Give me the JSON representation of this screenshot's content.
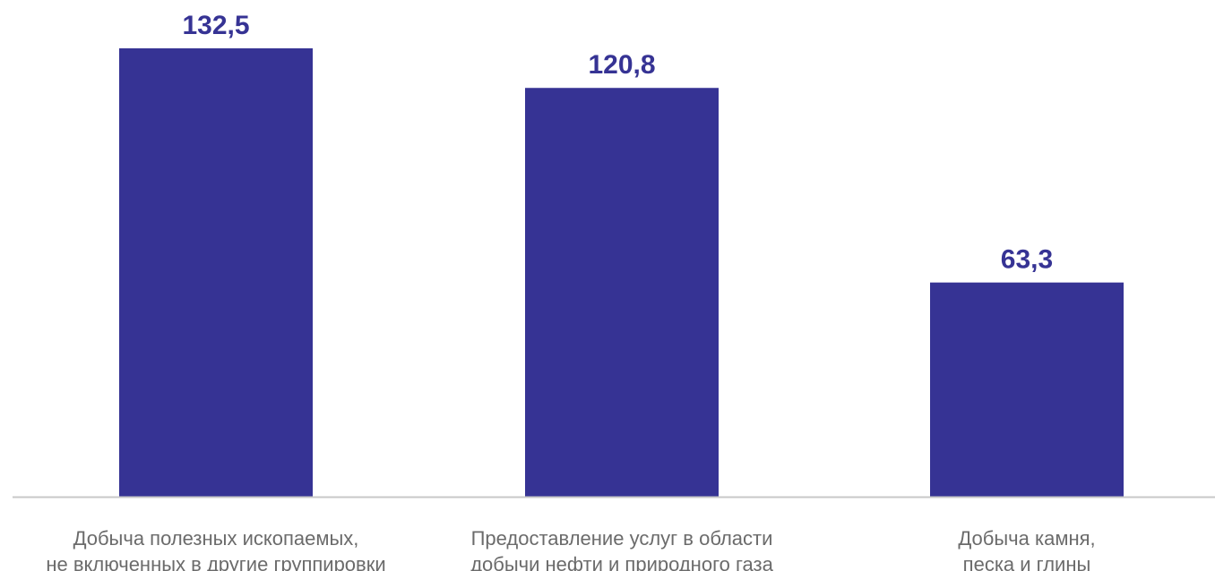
{
  "chart_data": {
    "type": "bar",
    "title": "",
    "xlabel": "",
    "ylabel": "",
    "categories": [
      [
        "Добыча полезных ископаемых,",
        "не включенных в другие группировки"
      ],
      [
        "Предоставление услуг в области",
        "добычи нефти и природного газа"
      ],
      [
        "Добыча камня,",
        "песка и глины"
      ]
    ],
    "values": [
      132.5,
      120.8,
      63.3
    ],
    "value_labels": [
      "132,5",
      "120,8",
      "63,3"
    ],
    "ylim": [
      0,
      132.5
    ],
    "grid": false,
    "legend": "none",
    "colors": {
      "bar": "#363394",
      "value_label": "#363394",
      "category_label": "#6b6b6b",
      "axis": "#c8c8c8"
    }
  }
}
